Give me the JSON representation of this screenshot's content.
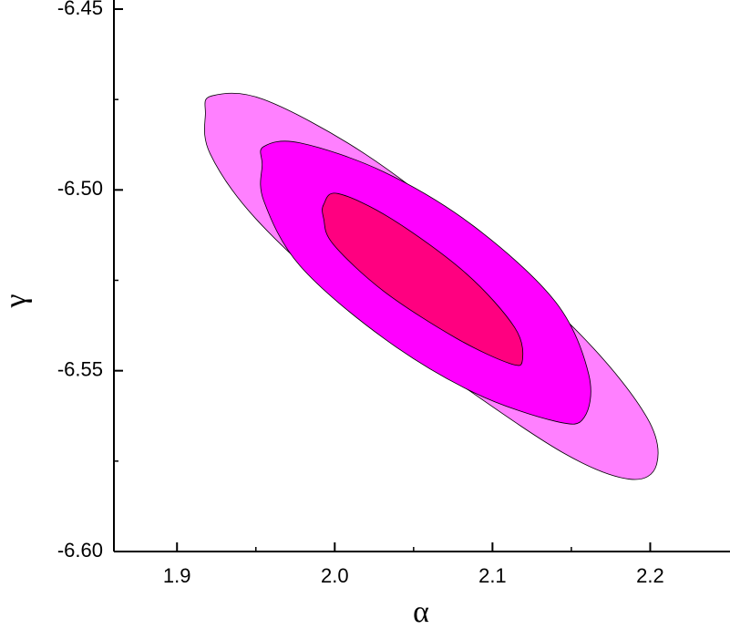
{
  "chart_data": {
    "type": "contour",
    "x_label": "α",
    "y_label": "γ",
    "xlim": [
      1.86,
      2.25
    ],
    "ylim": [
      -6.6,
      -6.45
    ],
    "xticks": [
      1.9,
      {
        "value": 2.0,
        "label": "2.0"
      },
      2.1,
      2.2
    ],
    "yticks": [
      {
        "value": -6.6,
        "label": "-6.60"
      },
      -6.55,
      {
        "value": -6.5,
        "label": "-6.50"
      },
      -6.45
    ],
    "xminorticks": [
      1.95,
      2.05,
      2.15
    ],
    "yminorticks": [
      -6.575,
      -6.525,
      -6.475
    ],
    "series": [
      {
        "color": "#ff80ff",
        "x": [
          1.922,
          1.955,
          2.019,
          2.088,
          2.158,
          2.198,
          2.204,
          2.187,
          2.146,
          2.077,
          2.007,
          1.95,
          1.921,
          1.918
        ],
        "y": [
          -6.474,
          -6.475,
          -6.49,
          -6.513,
          -6.541,
          -6.563,
          -6.576,
          -6.58,
          -6.573,
          -6.553,
          -6.531,
          -6.508,
          -6.49,
          -6.479
        ]
      },
      {
        "color": "#ff00ff",
        "x": [
          1.955,
          1.978,
          2.031,
          2.088,
          2.14,
          2.161,
          2.158,
          2.14,
          2.088,
          2.031,
          1.978,
          1.955,
          1.954
        ],
        "y": [
          -6.488,
          -6.487,
          -6.495,
          -6.51,
          -6.531,
          -6.551,
          -6.563,
          -6.564,
          -6.556,
          -6.541,
          -6.521,
          -6.503,
          -6.493
        ]
      },
      {
        "color": "#ff0080",
        "x": [
          1.993,
          2.002,
          2.036,
          2.083,
          2.114,
          2.119,
          2.111,
          2.077,
          2.031,
          1.999,
          1.993
        ],
        "y": [
          -6.504,
          -6.501,
          -6.508,
          -6.523,
          -6.538,
          -6.547,
          -6.548,
          -6.541,
          -6.528,
          -6.515,
          -6.508
        ]
      }
    ]
  }
}
